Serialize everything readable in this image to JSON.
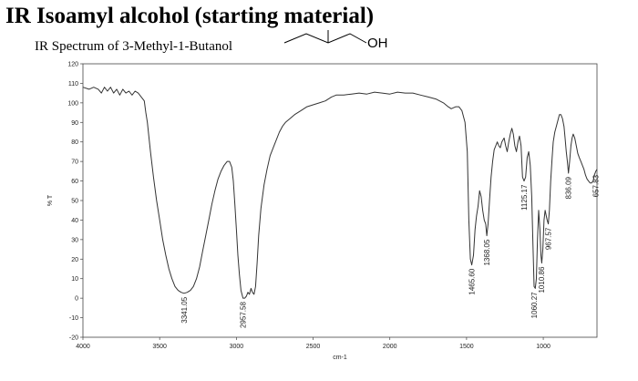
{
  "header": {
    "title": "IR Isoamyl alcohol (starting material)",
    "structure_group": "OH"
  },
  "chart_data": {
    "type": "line",
    "title": "IR Spectrum of 3-Methyl-1-Butanol",
    "xlabel": "cm-1",
    "ylabel": "% T",
    "xlim": [
      4000,
      650
    ],
    "ylim": [
      -20,
      120
    ],
    "x_direction": "reversed",
    "grid": false,
    "xticks": [
      4000,
      3500,
      3000,
      2500,
      2000,
      1500,
      1000
    ],
    "yticks": [
      -20,
      -10,
      0,
      10,
      20,
      30,
      40,
      50,
      60,
      70,
      80,
      90,
      100,
      110,
      120
    ],
    "series": [
      {
        "color": "#333333",
        "points": [
          [
            4000,
            108
          ],
          [
            3960,
            107
          ],
          [
            3930,
            108
          ],
          [
            3900,
            107
          ],
          [
            3880,
            105
          ],
          [
            3860,
            108
          ],
          [
            3840,
            106
          ],
          [
            3820,
            108
          ],
          [
            3800,
            105
          ],
          [
            3780,
            107
          ],
          [
            3760,
            104
          ],
          [
            3740,
            107
          ],
          [
            3720,
            105
          ],
          [
            3700,
            106
          ],
          [
            3680,
            104
          ],
          [
            3660,
            106
          ],
          [
            3640,
            105
          ],
          [
            3620,
            103
          ],
          [
            3600,
            101
          ],
          [
            3590,
            95
          ],
          [
            3580,
            90
          ],
          [
            3560,
            75
          ],
          [
            3540,
            62
          ],
          [
            3520,
            50
          ],
          [
            3500,
            40
          ],
          [
            3480,
            30
          ],
          [
            3460,
            22
          ],
          [
            3440,
            15
          ],
          [
            3420,
            10
          ],
          [
            3400,
            6
          ],
          [
            3380,
            4
          ],
          [
            3360,
            3
          ],
          [
            3341,
            2.5
          ],
          [
            3320,
            3
          ],
          [
            3300,
            4
          ],
          [
            3280,
            6
          ],
          [
            3260,
            10
          ],
          [
            3240,
            16
          ],
          [
            3220,
            24
          ],
          [
            3200,
            32
          ],
          [
            3180,
            40
          ],
          [
            3160,
            48
          ],
          [
            3140,
            55
          ],
          [
            3120,
            61
          ],
          [
            3100,
            65
          ],
          [
            3080,
            68
          ],
          [
            3060,
            70
          ],
          [
            3045,
            70
          ],
          [
            3030,
            67
          ],
          [
            3020,
            60
          ],
          [
            3010,
            48
          ],
          [
            3000,
            35
          ],
          [
            2990,
            22
          ],
          [
            2980,
            12
          ],
          [
            2970,
            4
          ],
          [
            2957,
            0
          ],
          [
            2945,
            0
          ],
          [
            2935,
            1
          ],
          [
            2925,
            3
          ],
          [
            2915,
            2
          ],
          [
            2905,
            5
          ],
          [
            2895,
            3
          ],
          [
            2885,
            2
          ],
          [
            2875,
            6
          ],
          [
            2865,
            18
          ],
          [
            2855,
            32
          ],
          [
            2840,
            46
          ],
          [
            2820,
            58
          ],
          [
            2800,
            66
          ],
          [
            2780,
            73
          ],
          [
            2750,
            79
          ],
          [
            2720,
            85
          ],
          [
            2700,
            88
          ],
          [
            2680,
            90
          ],
          [
            2650,
            92
          ],
          [
            2620,
            94
          ],
          [
            2580,
            96
          ],
          [
            2540,
            98
          ],
          [
            2500,
            99
          ],
          [
            2460,
            100
          ],
          [
            2420,
            101
          ],
          [
            2380,
            103
          ],
          [
            2350,
            104
          ],
          [
            2300,
            104
          ],
          [
            2250,
            104.5
          ],
          [
            2200,
            105
          ],
          [
            2150,
            104.5
          ],
          [
            2100,
            105.5
          ],
          [
            2050,
            105
          ],
          [
            2000,
            104.5
          ],
          [
            1950,
            105.5
          ],
          [
            1900,
            105
          ],
          [
            1850,
            105
          ],
          [
            1800,
            104
          ],
          [
            1750,
            103
          ],
          [
            1700,
            102
          ],
          [
            1650,
            100
          ],
          [
            1620,
            98
          ],
          [
            1600,
            97
          ],
          [
            1570,
            98
          ],
          [
            1550,
            98
          ],
          [
            1530,
            96
          ],
          [
            1510,
            90
          ],
          [
            1495,
            75
          ],
          [
            1485,
            40
          ],
          [
            1475,
            20
          ],
          [
            1466,
            17
          ],
          [
            1455,
            22
          ],
          [
            1445,
            35
          ],
          [
            1435,
            42
          ],
          [
            1425,
            47
          ],
          [
            1415,
            55
          ],
          [
            1405,
            52
          ],
          [
            1395,
            45
          ],
          [
            1385,
            40
          ],
          [
            1375,
            38
          ],
          [
            1368,
            32
          ],
          [
            1360,
            38
          ],
          [
            1350,
            50
          ],
          [
            1340,
            62
          ],
          [
            1330,
            70
          ],
          [
            1320,
            76
          ],
          [
            1310,
            78
          ],
          [
            1300,
            80
          ],
          [
            1290,
            78
          ],
          [
            1280,
            77
          ],
          [
            1270,
            80
          ],
          [
            1255,
            82
          ],
          [
            1245,
            78
          ],
          [
            1235,
            75
          ],
          [
            1225,
            80
          ],
          [
            1215,
            84
          ],
          [
            1205,
            87
          ],
          [
            1195,
            84
          ],
          [
            1185,
            78
          ],
          [
            1175,
            75
          ],
          [
            1165,
            80
          ],
          [
            1155,
            83
          ],
          [
            1145,
            78
          ],
          [
            1135,
            62
          ],
          [
            1125,
            60
          ],
          [
            1115,
            62
          ],
          [
            1105,
            72
          ],
          [
            1095,
            75
          ],
          [
            1085,
            68
          ],
          [
            1075,
            52
          ],
          [
            1068,
            30
          ],
          [
            1060,
            6
          ],
          [
            1052,
            5
          ],
          [
            1045,
            10
          ],
          [
            1038,
            30
          ],
          [
            1030,
            45
          ],
          [
            1022,
            35
          ],
          [
            1015,
            22
          ],
          [
            1010,
            18
          ],
          [
            1003,
            25
          ],
          [
            995,
            40
          ],
          [
            988,
            45
          ],
          [
            980,
            42
          ],
          [
            975,
            40
          ],
          [
            967,
            38
          ],
          [
            960,
            45
          ],
          [
            952,
            60
          ],
          [
            942,
            72
          ],
          [
            935,
            80
          ],
          [
            925,
            85
          ],
          [
            915,
            88
          ],
          [
            905,
            91
          ],
          [
            895,
            94
          ],
          [
            885,
            94
          ],
          [
            875,
            92
          ],
          [
            865,
            88
          ],
          [
            858,
            82
          ],
          [
            850,
            75
          ],
          [
            843,
            70
          ],
          [
            836,
            64
          ],
          [
            828,
            70
          ],
          [
            820,
            78
          ],
          [
            812,
            82
          ],
          [
            805,
            84
          ],
          [
            795,
            82
          ],
          [
            785,
            78
          ],
          [
            775,
            74
          ],
          [
            765,
            72
          ],
          [
            755,
            70
          ],
          [
            745,
            68
          ],
          [
            735,
            66
          ],
          [
            725,
            63
          ],
          [
            715,
            61
          ],
          [
            705,
            60
          ],
          [
            695,
            59
          ],
          [
            685,
            59
          ],
          [
            675,
            60
          ],
          [
            667,
            63
          ],
          [
            658,
            65
          ],
          [
            650,
            66
          ]
        ]
      }
    ],
    "peak_labels": [
      {
        "x": 3341.05,
        "y": 2.5,
        "text": "3341.05"
      },
      {
        "x": 2957.58,
        "y": 0,
        "text": "2957.58"
      },
      {
        "x": 1465.6,
        "y": 17,
        "text": "1465.60"
      },
      {
        "x": 1368.05,
        "y": 32,
        "text": "1368.05"
      },
      {
        "x": 1125.17,
        "y": 60,
        "text": "1125.17"
      },
      {
        "x": 1060.27,
        "y": 5,
        "text": "1060.27"
      },
      {
        "x": 1010.86,
        "y": 18,
        "text": "1010.86"
      },
      {
        "x": 967.57,
        "y": 38,
        "text": "967.57"
      },
      {
        "x": 836.09,
        "y": 64,
        "text": "836.09"
      },
      {
        "x": 657.83,
        "y": 65,
        "text": "657.83"
      }
    ]
  }
}
